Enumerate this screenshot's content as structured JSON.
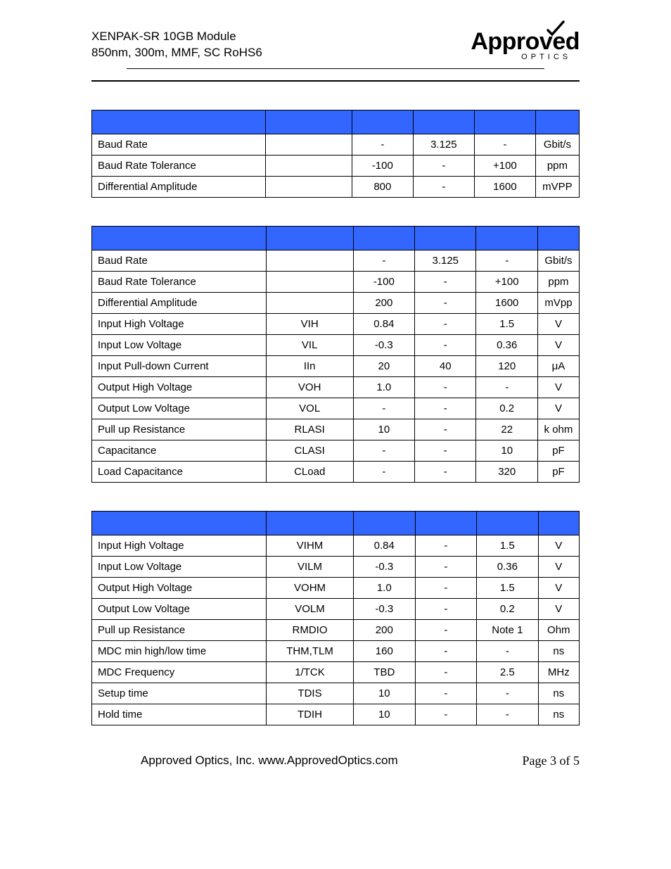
{
  "header": {
    "line1": "XENPAK-SR 10GB Module",
    "line2": "850nm, 300m, MMF, SC RoHS6"
  },
  "logo": {
    "main": "Approved",
    "sub": "OPTICS"
  },
  "tables": {
    "header_bg": "#3366ff",
    "border_color": "#000000",
    "col_widths_pct": [
      34,
      17,
      12,
      12,
      12,
      8
    ],
    "t1": {
      "rows": [
        {
          "param": "Baud Rate",
          "sym": "",
          "min": "-",
          "typ": "3.125",
          "max": "-",
          "unit": "Gbit/s"
        },
        {
          "param": "Baud Rate Tolerance",
          "sym": "",
          "min": "-100",
          "typ": "-",
          "max": "+100",
          "unit": "ppm"
        },
        {
          "param": "Differential Amplitude",
          "sym": "",
          "min": "800",
          "typ": "-",
          "max": "1600",
          "unit": "mVPP"
        }
      ]
    },
    "t2": {
      "rows": [
        {
          "param": "Baud Rate",
          "sym": "",
          "min": "-",
          "typ": "3.125",
          "max": "-",
          "unit": "Gbit/s"
        },
        {
          "param": "Baud Rate Tolerance",
          "sym": "",
          "min": "-100",
          "typ": "-",
          "max": "+100",
          "unit": "ppm"
        },
        {
          "param": "Differential Amplitude",
          "sym": "",
          "min": "200",
          "typ": "-",
          "max": "1600",
          "unit": "mVpp"
        },
        {
          "param": "Input High Voltage",
          "sym": "VIH",
          "min": "0.84",
          "typ": "-",
          "max": "1.5",
          "unit": "V"
        },
        {
          "param": "Input Low Voltage",
          "sym": "VIL",
          "min": "-0.3",
          "typ": "-",
          "max": "0.36",
          "unit": "V"
        },
        {
          "param": "Input Pull-down Current",
          "sym": "IIn",
          "min": "20",
          "typ": "40",
          "max": "120",
          "unit": "μA"
        },
        {
          "param": "Output High Voltage",
          "sym": "VOH",
          "min": "1.0",
          "typ": "-",
          "max": "-",
          "unit": "V"
        },
        {
          "param": "Output Low Voltage",
          "sym": "VOL",
          "min": "-",
          "typ": "-",
          "max": "0.2",
          "unit": "V"
        },
        {
          "param": "Pull up Resistance",
          "sym": "RLASI",
          "min": "10",
          "typ": "-",
          "max": "22",
          "unit": "k ohm"
        },
        {
          "param": "Capacitance",
          "sym": "CLASI",
          "min": "-",
          "typ": "-",
          "max": "10",
          "unit": "pF"
        },
        {
          "param": "Load Capacitance",
          "sym": "CLoad",
          "min": "-",
          "typ": "-",
          "max": "320",
          "unit": "pF"
        }
      ]
    },
    "t3": {
      "rows": [
        {
          "param": "Input High Voltage",
          "sym": "VIHM",
          "min": "0.84",
          "typ": "-",
          "max": "1.5",
          "unit": "V"
        },
        {
          "param": "Input Low Voltage",
          "sym": "VILM",
          "min": "-0.3",
          "typ": "-",
          "max": "0.36",
          "unit": "V"
        },
        {
          "param": "Output High Voltage",
          "sym": "VOHM",
          "min": "1.0",
          "typ": "-",
          "max": "1.5",
          "unit": "V"
        },
        {
          "param": "Output Low Voltage",
          "sym": "VOLM",
          "min": "-0.3",
          "typ": "-",
          "max": "0.2",
          "unit": "V"
        },
        {
          "param": "Pull up Resistance",
          "sym": "RMDIO",
          "min": "200",
          "typ": "-",
          "max": "Note 1",
          "unit": "Ohm"
        },
        {
          "param": "MDC min high/low time",
          "sym": "THM,TLM",
          "min": "160",
          "typ": "-",
          "max": "-",
          "unit": "ns"
        },
        {
          "param": "MDC Frequency",
          "sym": "1/TCK",
          "min": "TBD",
          "typ": "-",
          "max": "2.5",
          "unit": "MHz"
        },
        {
          "param": "Setup time",
          "sym": "TDIS",
          "min": "10",
          "typ": "-",
          "max": "-",
          "unit": "ns"
        },
        {
          "param": "Hold time",
          "sym": "TDIH",
          "min": "10",
          "typ": "-",
          "max": "-",
          "unit": "ns"
        }
      ]
    }
  },
  "footer": {
    "left": "Approved Optics, Inc.  www.ApprovedOptics.com",
    "right": "Page 3 of 5"
  }
}
